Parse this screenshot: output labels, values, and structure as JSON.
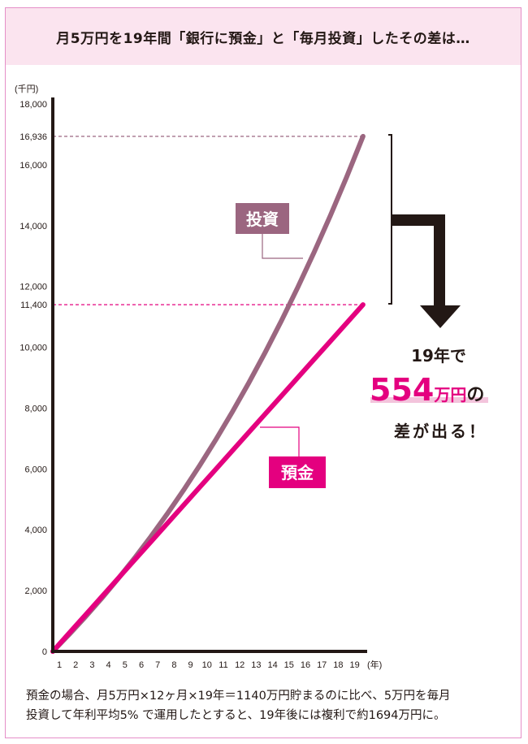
{
  "title": "月5万円を19年間「銀行に預金」と「毎月投資」したその差は…",
  "chart_data": {
    "type": "line",
    "title": "月5万円を19年間「銀行に預金」と「毎月投資」したその差は…",
    "xlabel": "(年)",
    "ylabel": "(千円)",
    "x": [
      0,
      1,
      2,
      3,
      4,
      5,
      6,
      7,
      8,
      9,
      10,
      11,
      12,
      13,
      14,
      15,
      16,
      17,
      18,
      19
    ],
    "x_tick_labels": [
      "1",
      "2",
      "3",
      "4",
      "5",
      "6",
      "7",
      "8",
      "9",
      "10",
      "11",
      "12",
      "13",
      "14",
      "15",
      "16",
      "17",
      "18",
      "19"
    ],
    "y_tick_labels": [
      "0",
      "2,000",
      "4,000",
      "6,000",
      "8,000",
      "10,000",
      "12,000",
      "14,000",
      "16,000",
      "18,000"
    ],
    "y_ticks": [
      0,
      2000,
      4000,
      6000,
      8000,
      10000,
      12000,
      14000,
      16000,
      18000
    ],
    "ylim": [
      0,
      18000
    ],
    "grid": false,
    "series": [
      {
        "name": "投資",
        "color": "#9b6680",
        "values": [
          0,
          555,
          1137,
          1748,
          2390,
          3064,
          3772,
          4515,
          5295,
          6115,
          6975,
          7878,
          8827,
          9823,
          10868,
          11966,
          13120,
          14330,
          15601,
          16936
        ]
      },
      {
        "name": "預金",
        "color": "#e4007f",
        "values": [
          0,
          600,
          1200,
          1800,
          2400,
          3000,
          3600,
          4200,
          4800,
          5400,
          6000,
          6600,
          7200,
          7800,
          8400,
          9000,
          9600,
          10200,
          10800,
          11400
        ]
      }
    ],
    "annotations": [
      {
        "label": "16,936",
        "value": 16936,
        "color": "#9b6680"
      },
      {
        "label": "11,400",
        "value": 11400,
        "color": "#e4007f"
      }
    ]
  },
  "callout": {
    "line1": "19年で",
    "amount": "554",
    "unit": "万円",
    "suffix": "の",
    "line3": "差が出る！"
  },
  "note": {
    "line1": "預金の場合、月5万円×12ヶ月×19年＝1140万円貯まるのに比べ、5万円を毎月",
    "line2": "投資して年利平均5% で運用したとすると、19年後には複利で約1694万円に。"
  },
  "colors": {
    "invest": "#9b6680",
    "deposit": "#e4007f",
    "band": "#fbe4ef",
    "axis": "#231815"
  }
}
